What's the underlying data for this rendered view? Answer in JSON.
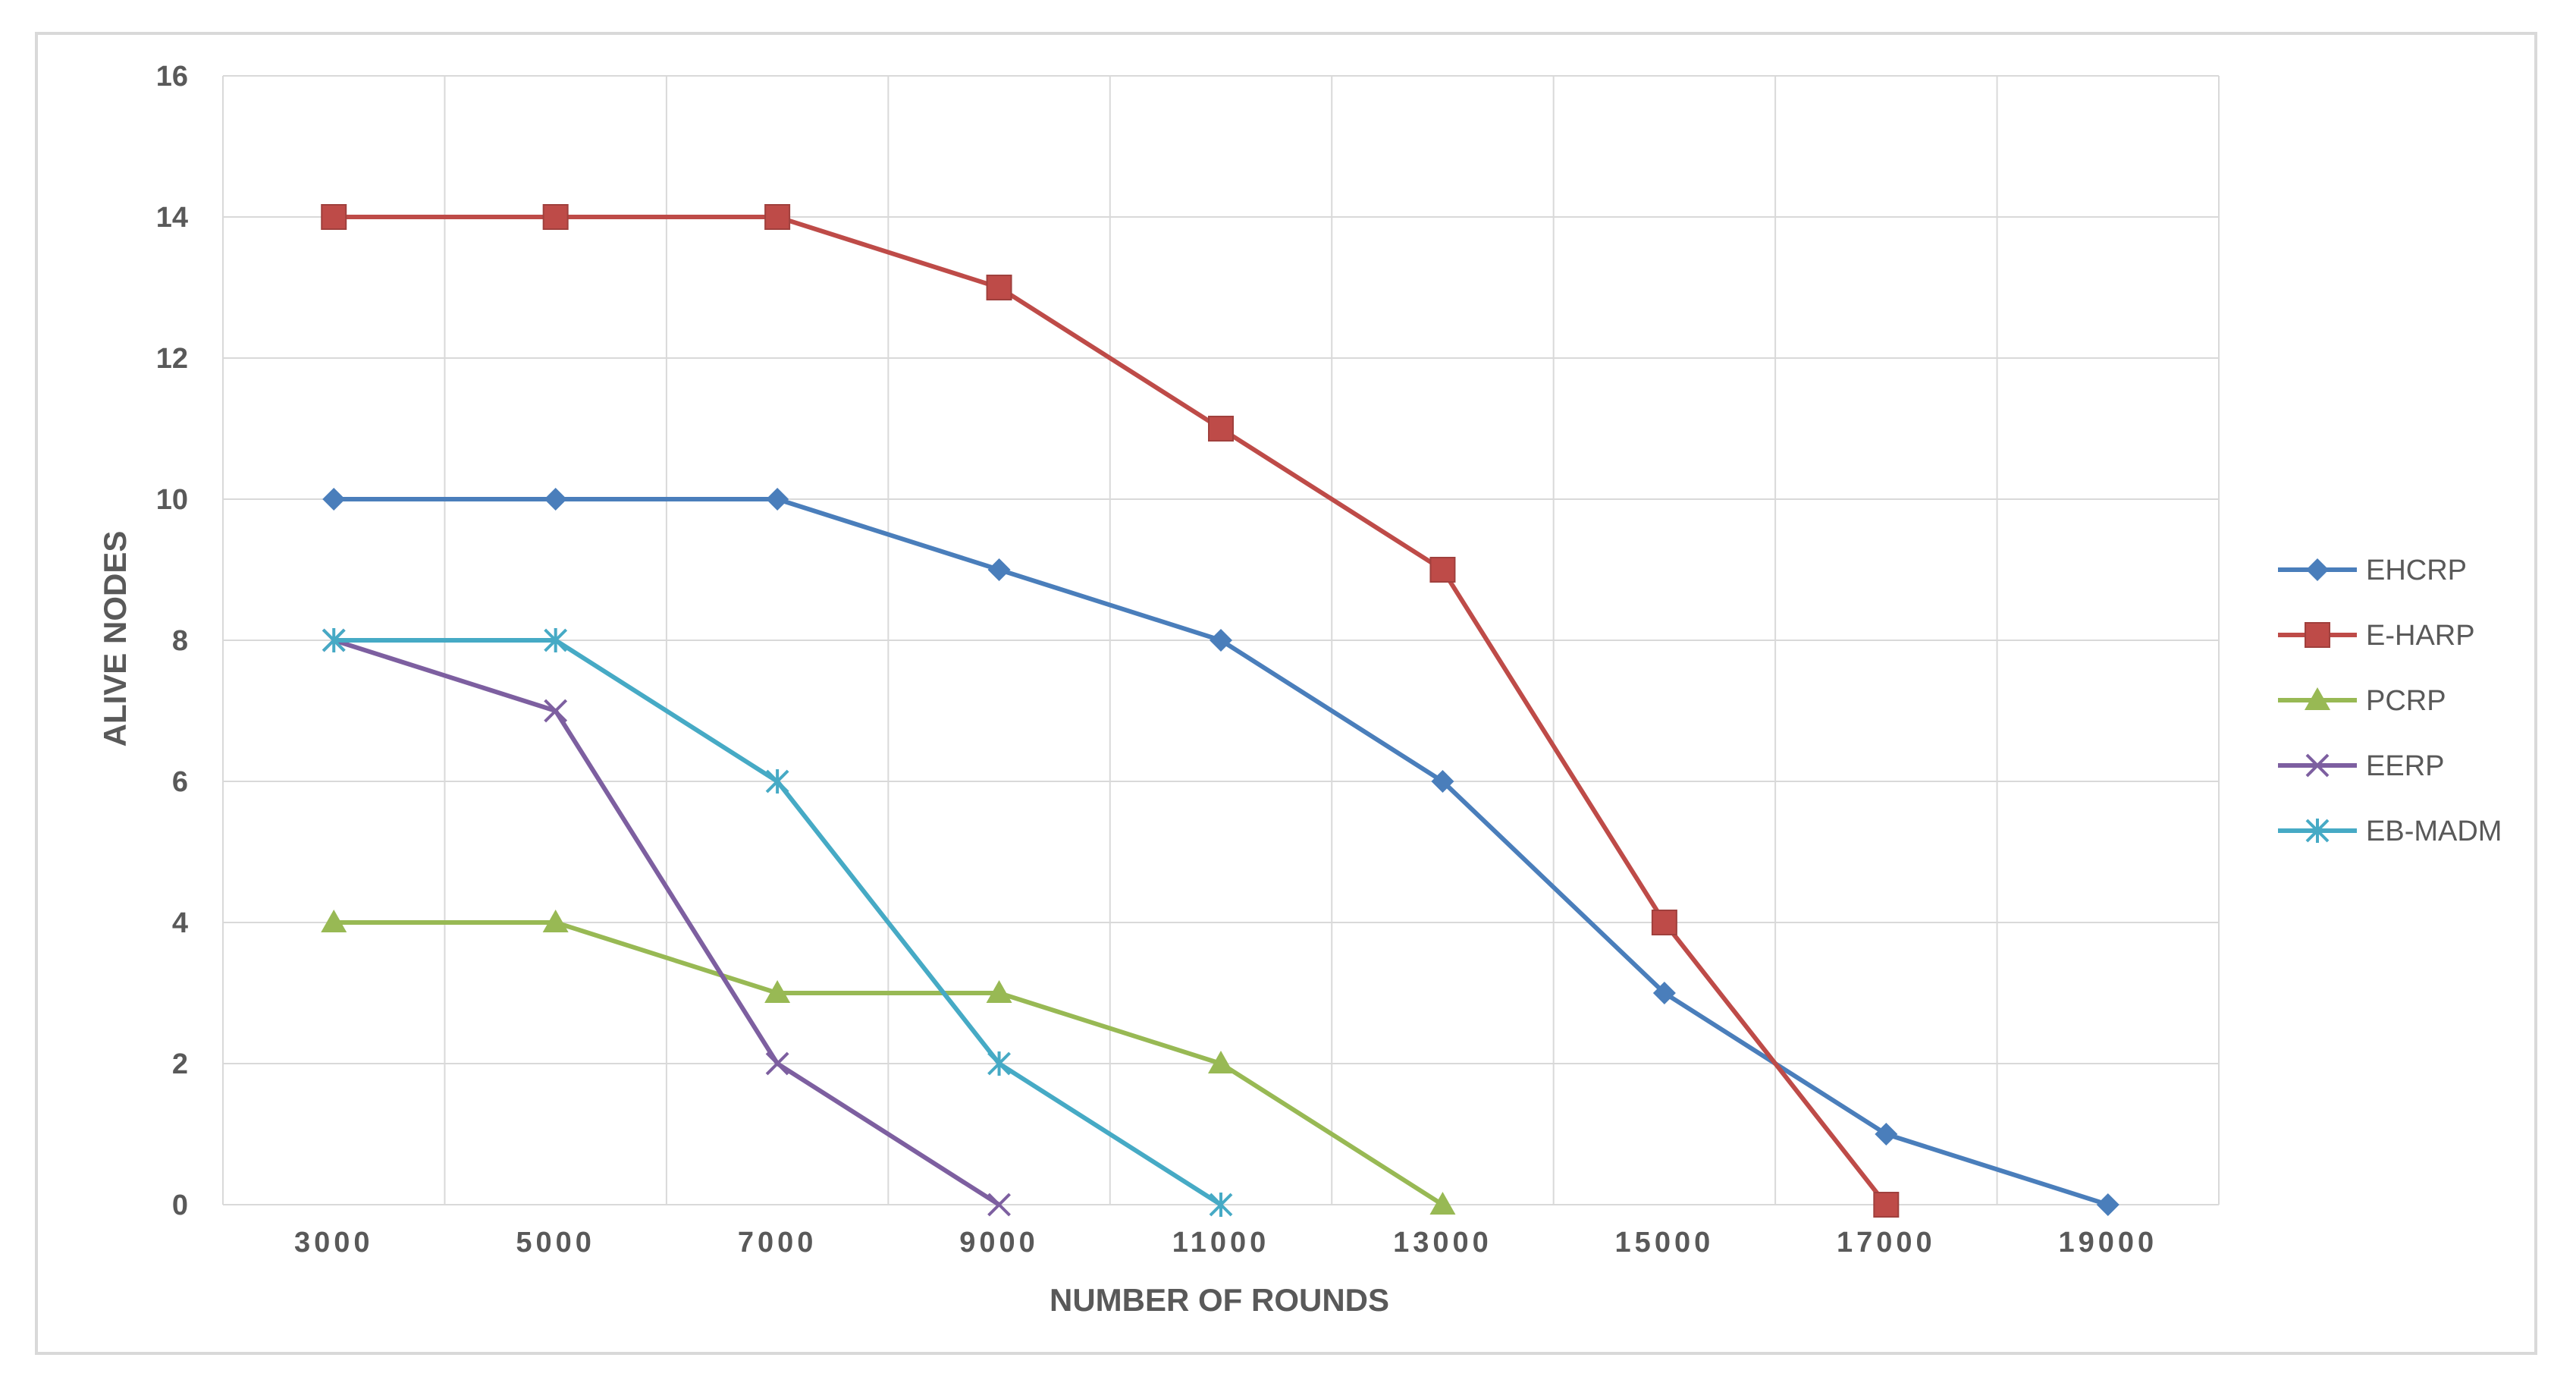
{
  "chart_data": {
    "type": "line",
    "x": [
      3000,
      5000,
      7000,
      9000,
      11000,
      13000,
      15000,
      17000,
      19000
    ],
    "x_tick_labels": [
      "3000",
      "5000",
      "7000",
      "9000",
      "11000",
      "13000",
      "15000",
      "17000",
      "19000"
    ],
    "y_ticks": [
      0,
      2,
      4,
      6,
      8,
      10,
      12,
      14,
      16
    ],
    "xlabel": "NUMBER OF ROUNDS",
    "ylabel": "ALIVE NODES",
    "xlim": [
      2000,
      20000
    ],
    "ylim": [
      0,
      16
    ],
    "grid": true,
    "legend_position": "right",
    "series": [
      {
        "name": "EHCRP",
        "color": "#4a7ebb",
        "marker": "diamond",
        "x": [
          3000,
          5000,
          7000,
          9000,
          11000,
          13000,
          15000,
          17000,
          19000
        ],
        "values": [
          10,
          10,
          10,
          9,
          8,
          6,
          3,
          1,
          0
        ]
      },
      {
        "name": "E-HARP",
        "color": "#be4b48",
        "marker": "square",
        "x": [
          3000,
          5000,
          7000,
          9000,
          11000,
          13000,
          15000,
          17000
        ],
        "values": [
          14,
          14,
          14,
          13,
          11,
          9,
          4,
          0
        ]
      },
      {
        "name": "PCRP",
        "color": "#98b954",
        "marker": "triangle",
        "x": [
          3000,
          5000,
          7000,
          9000,
          11000,
          13000
        ],
        "values": [
          4,
          4,
          3,
          3,
          2,
          0
        ]
      },
      {
        "name": "EERP",
        "color": "#7d5fa0",
        "marker": "x",
        "x": [
          3000,
          5000,
          7000,
          9000
        ],
        "values": [
          8,
          7,
          2,
          0
        ]
      },
      {
        "name": "EB-MADM",
        "color": "#46aac5",
        "marker": "star",
        "x": [
          3000,
          5000,
          7000,
          9000,
          11000
        ],
        "values": [
          8,
          8,
          6,
          2,
          0
        ]
      }
    ]
  }
}
